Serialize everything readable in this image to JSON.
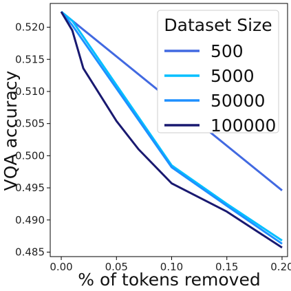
{
  "chart_data": {
    "type": "line",
    "title": "",
    "xlabel": "% of tokens removed",
    "ylabel": "VQA accuracy",
    "xlim": [
      -0.01,
      0.205
    ],
    "ylim": [
      0.4843,
      0.5237
    ],
    "xticks": [
      0.0,
      0.05,
      0.1,
      0.15,
      0.2
    ],
    "xtick_labels": [
      "0.00",
      "0.05",
      "0.10",
      "0.15",
      "0.20"
    ],
    "yticks": [
      0.485,
      0.49,
      0.495,
      0.5,
      0.505,
      0.51,
      0.515,
      0.52
    ],
    "ytick_labels": [
      "0.485",
      "0.490",
      "0.495",
      "0.500",
      "0.505",
      "0.510",
      "0.515",
      "0.520"
    ],
    "grid": false,
    "legend": {
      "title": "Dataset Size",
      "placement": "top-right"
    },
    "series": [
      {
        "name": "500",
        "color": "#4169e1",
        "x": [
          0.0,
          0.2
        ],
        "y": [
          0.5224,
          0.4946
        ]
      },
      {
        "name": "5000",
        "color": "#00bfff",
        "x": [
          0.0,
          0.01,
          0.1,
          0.15,
          0.2
        ],
        "y": [
          0.5224,
          0.521,
          0.4985,
          0.4925,
          0.4868
        ]
      },
      {
        "name": "50000",
        "color": "#1e90ff",
        "x": [
          0.0,
          0.01,
          0.1,
          0.15,
          0.2
        ],
        "y": [
          0.5224,
          0.5203,
          0.4982,
          0.4922,
          0.4863
        ]
      },
      {
        "name": "100000",
        "color": "#191970",
        "x": [
          0.0,
          0.01,
          0.02,
          0.05,
          0.07,
          0.1,
          0.15,
          0.2
        ],
        "y": [
          0.5224,
          0.5195,
          0.5136,
          0.5054,
          0.501,
          0.4957,
          0.4913,
          0.4857
        ]
      }
    ]
  }
}
